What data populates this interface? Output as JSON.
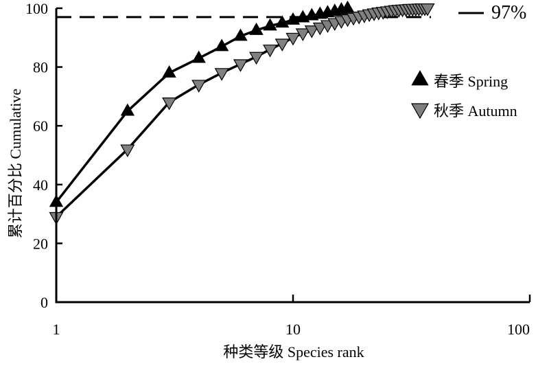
{
  "chart_data": {
    "type": "line",
    "x_scale": "log",
    "xlabel": "种类等级 Species rank",
    "ylabel": "累计百分比 Cumulative",
    "xlim": [
      1,
      100
    ],
    "ylim": [
      0,
      100
    ],
    "x_ticks": [
      1,
      10,
      100
    ],
    "y_ticks": [
      0,
      20,
      40,
      60,
      80,
      100
    ],
    "grid": false,
    "legend_position": "right",
    "reference_line": {
      "y": 97,
      "label": "97%",
      "style": "dashed"
    },
    "series": [
      {
        "name": "春季 Spring",
        "marker": "triangle-up",
        "color": "#000000",
        "x": [
          1,
          2,
          3,
          4,
          5,
          6,
          7,
          8,
          9,
          10,
          11,
          12,
          13,
          14,
          15,
          16,
          17
        ],
        "y": [
          34,
          65,
          78,
          83,
          87,
          90.5,
          92.5,
          94,
          95,
          96,
          96.8,
          97.5,
          98,
          98.5,
          99,
          99.5,
          100
        ]
      },
      {
        "name": "秋季 Autumn",
        "marker": "triangle-down",
        "color": "#808080",
        "x": [
          1,
          2,
          3,
          4,
          5,
          6,
          7,
          8,
          9,
          10,
          11,
          12,
          13,
          14,
          15,
          16,
          17,
          18,
          19,
          20,
          21,
          22,
          23,
          24,
          25,
          26,
          27,
          28,
          29,
          30,
          31,
          32,
          33,
          34,
          35,
          36,
          37
        ],
        "y": [
          29,
          52,
          68,
          74,
          78,
          81,
          83.5,
          86,
          88,
          90,
          91.5,
          92.5,
          93.5,
          94.3,
          95,
          95.7,
          96.3,
          96.8,
          97.2,
          97.6,
          98,
          98.3,
          98.6,
          98.8,
          99,
          99.2,
          99.4,
          99.5,
          99.6,
          99.7,
          99.8,
          99.85,
          99.9,
          99.95,
          100,
          100,
          100
        ]
      }
    ]
  }
}
